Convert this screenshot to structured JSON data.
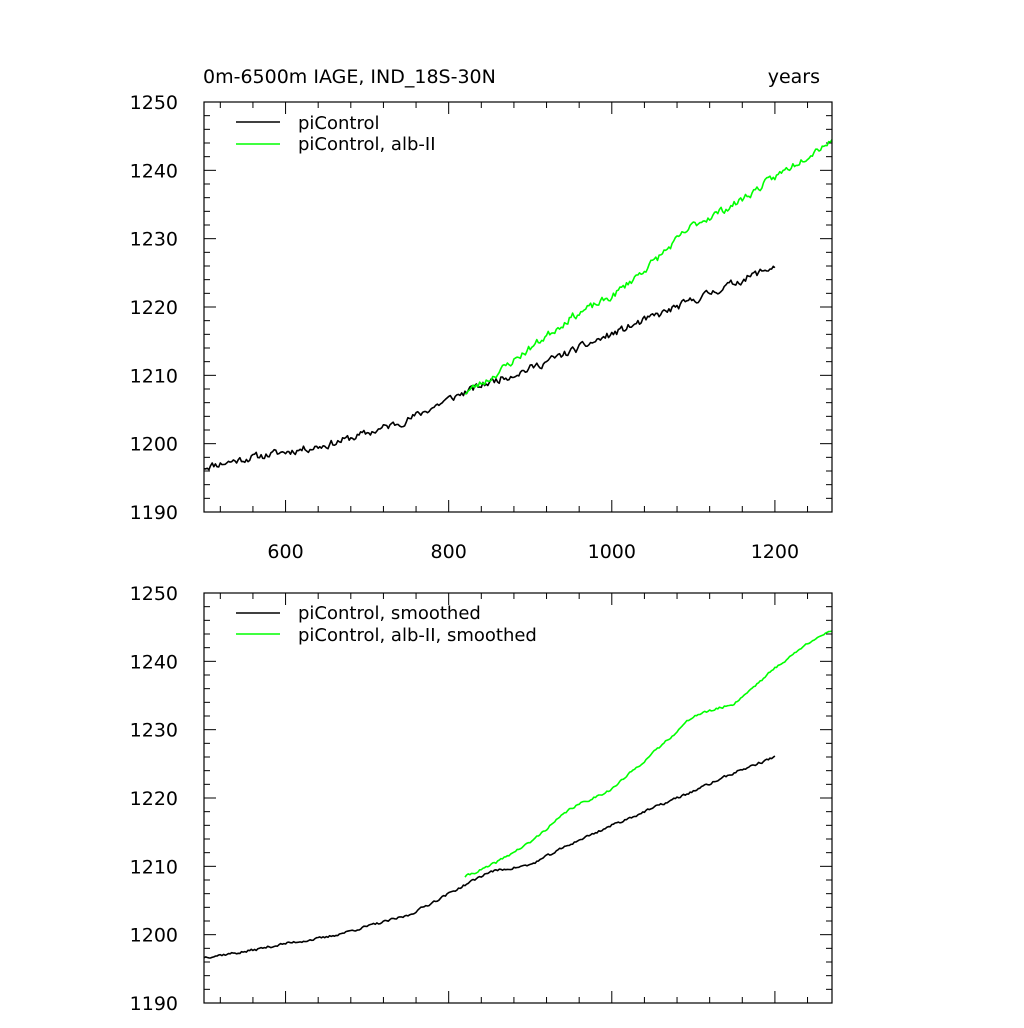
{
  "chart_data": [
    {
      "type": "line",
      "title_left": "0m-6500m IAGE, IND_18S-30N",
      "title_right": "years",
      "xlim": [
        500,
        1270
      ],
      "ylim": [
        1190,
        1250
      ],
      "xticks": [
        600,
        800,
        1000,
        1200
      ],
      "yticks": [
        1190,
        1200,
        1210,
        1220,
        1230,
        1240,
        1250
      ],
      "show_x_tick_labels": true,
      "series": [
        {
          "name": "piControl",
          "color": "#000000",
          "noise": 0.9,
          "seed": 11,
          "points": [
            [
              500,
              1196.6
            ],
            [
              550,
              1197.8
            ],
            [
              600,
              1198.8
            ],
            [
              650,
              1199.8
            ],
            [
              700,
              1201.5
            ],
            [
              750,
              1203.5
            ],
            [
              800,
              1206.5
            ],
            [
              850,
              1209.0
            ],
            [
              900,
              1211.0
            ],
            [
              950,
              1213.5
            ],
            [
              1000,
              1216.0
            ],
            [
              1050,
              1218.5
            ],
            [
              1100,
              1221.0
            ],
            [
              1150,
              1223.5
            ],
            [
              1200,
              1226.0
            ]
          ]
        },
        {
          "name": "piControl, alb-II",
          "color": "#00ff00",
          "noise": 0.9,
          "seed": 23,
          "points": [
            [
              820,
              1207.5
            ],
            [
              850,
              1209.5
            ],
            [
              900,
              1214.0
            ],
            [
              950,
              1218.5
            ],
            [
              1000,
              1221.5
            ],
            [
              1050,
              1226.5
            ],
            [
              1100,
              1232.0
            ],
            [
              1150,
              1235.0
            ],
            [
              1200,
              1239.0
            ],
            [
              1250,
              1243.0
            ],
            [
              1270,
              1244.5
            ]
          ]
        }
      ]
    },
    {
      "type": "line",
      "title_left": "",
      "title_right": "",
      "xlim": [
        500,
        1270
      ],
      "ylim": [
        1190,
        1250
      ],
      "xticks": [
        600,
        800,
        1000,
        1200
      ],
      "yticks": [
        1190,
        1200,
        1210,
        1220,
        1230,
        1240,
        1250
      ],
      "show_x_tick_labels": false,
      "series": [
        {
          "name": "piControl, smoothed",
          "color": "#000000",
          "noise": 0.3,
          "seed": 37,
          "points": [
            [
              500,
              1196.7
            ],
            [
              550,
              1197.5
            ],
            [
              600,
              1198.7
            ],
            [
              650,
              1199.6
            ],
            [
              700,
              1201.2
            ],
            [
              750,
              1202.8
            ],
            [
              800,
              1206.0
            ],
            [
              850,
              1209.2
            ],
            [
              900,
              1210.2
            ],
            [
              950,
              1213.3
            ],
            [
              1000,
              1216.0
            ],
            [
              1050,
              1218.5
            ],
            [
              1100,
              1221.0
            ],
            [
              1150,
              1223.7
            ],
            [
              1200,
              1226.0
            ]
          ]
        },
        {
          "name": "piControl, alb-II, smoothed",
          "color": "#00ff00",
          "noise": 0.3,
          "seed": 41,
          "points": [
            [
              820,
              1208.5
            ],
            [
              850,
              1210.0
            ],
            [
              900,
              1213.5
            ],
            [
              950,
              1218.5
            ],
            [
              1000,
              1221.3
            ],
            [
              1050,
              1226.5
            ],
            [
              1100,
              1232.0
            ],
            [
              1150,
              1233.8
            ],
            [
              1200,
              1239.0
            ],
            [
              1250,
              1243.5
            ],
            [
              1270,
              1244.3
            ]
          ]
        }
      ]
    }
  ]
}
